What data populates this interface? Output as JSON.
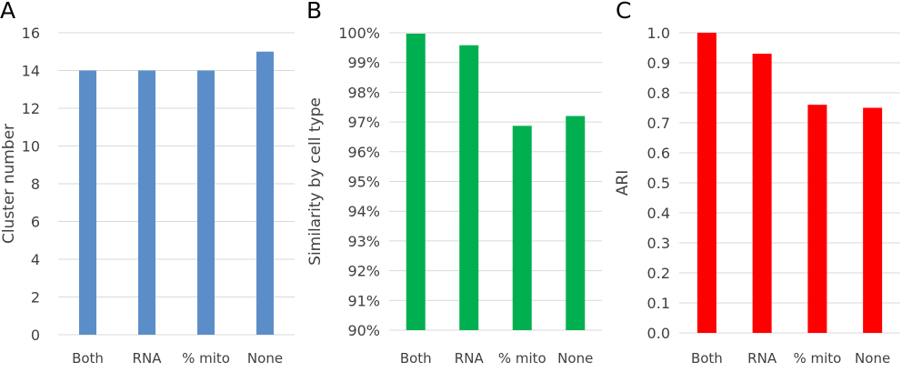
{
  "chart_data": [
    {
      "type": "bar",
      "panel_label": "A",
      "categories": [
        "Both",
        "RNA",
        "% mito",
        "None"
      ],
      "values": [
        14,
        14,
        14,
        15
      ],
      "ylabel": "Cluster number",
      "ylim": [
        0,
        16
      ],
      "yticks": [
        "0",
        "2",
        "4",
        "6",
        "8",
        "10",
        "12",
        "14",
        "16"
      ],
      "color": "#5B8EC9",
      "grid": true
    },
    {
      "type": "bar",
      "panel_label": "B",
      "categories": [
        "Both",
        "RNA",
        "% mito",
        "None"
      ],
      "values": [
        99.97,
        99.58,
        96.87,
        97.2
      ],
      "ylabel": "Similarity by cell type",
      "ylim": [
        90,
        100
      ],
      "yticks": [
        "90%",
        "91%",
        "92%",
        "93%",
        "94%",
        "95%",
        "96%",
        "97%",
        "98%",
        "99%",
        "100%"
      ],
      "color": "#00B050",
      "grid": true
    },
    {
      "type": "bar",
      "panel_label": "C",
      "categories": [
        "Both",
        "RNA",
        "% mito",
        "None"
      ],
      "values": [
        1.0,
        0.93,
        0.76,
        0.75
      ],
      "ylabel": "ARI",
      "ylim": [
        0,
        1
      ],
      "yticks": [
        "0.0",
        "0.1",
        "0.2",
        "0.3",
        "0.4",
        "0.5",
        "0.6",
        "0.7",
        "0.8",
        "0.9",
        "1.0"
      ],
      "color": "#FF0000",
      "grid": true
    }
  ]
}
